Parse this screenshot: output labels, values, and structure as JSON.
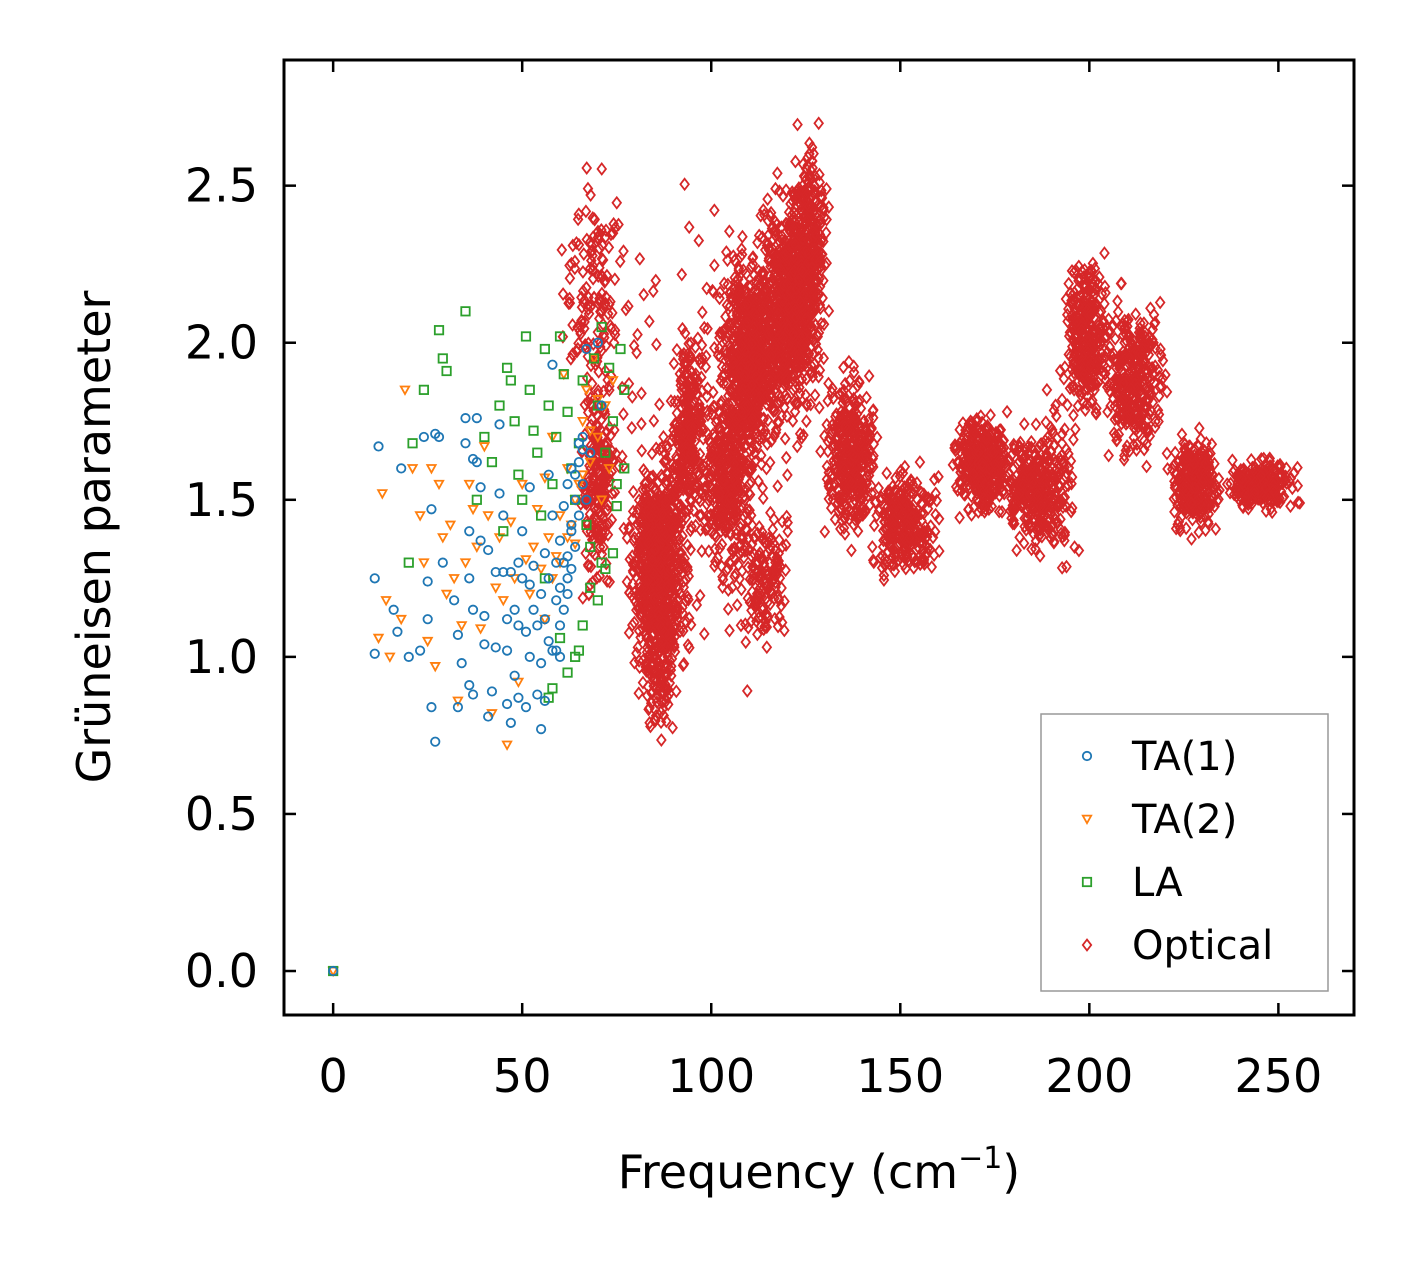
{
  "chart_data": {
    "type": "scatter",
    "title": "",
    "xlabel": "Frequency (cm",
    "xlabel_sup": "−1",
    "xlabel_tail": ")",
    "ylabel": "Grüneisen parameter",
    "xlim": [
      -13,
      270
    ],
    "ylim": [
      -0.14,
      2.9
    ],
    "xticks": [
      0,
      50,
      100,
      150,
      200,
      250
    ],
    "xtick_labels": [
      "0",
      "50",
      "100",
      "150",
      "200",
      "250"
    ],
    "yticks": [
      0.0,
      0.5,
      1.0,
      1.5,
      2.0,
      2.5
    ],
    "ytick_labels": [
      "0.0",
      "0.5",
      "1.0",
      "1.5",
      "2.0",
      "2.5"
    ],
    "grid": false,
    "legend_position": "lower-right",
    "series": [
      {
        "name": "TA(1)",
        "marker": "circle",
        "color": "#1f77b4",
        "points": [
          [
            0,
            0
          ],
          [
            11,
            1.25
          ],
          [
            11,
            1.01
          ],
          [
            12,
            1.67
          ],
          [
            16,
            1.15
          ],
          [
            17,
            1.08
          ],
          [
            18,
            1.6
          ],
          [
            20,
            1.0
          ],
          [
            23,
            1.02
          ],
          [
            24,
            1.7
          ],
          [
            25,
            1.24
          ],
          [
            25,
            1.12
          ],
          [
            26,
            1.47
          ],
          [
            26,
            0.84
          ],
          [
            27,
            1.71
          ],
          [
            27,
            0.73
          ],
          [
            28,
            1.7
          ],
          [
            29,
            1.3
          ],
          [
            32,
            1.18
          ],
          [
            33,
            1.07
          ],
          [
            33,
            0.84
          ],
          [
            34,
            0.98
          ],
          [
            35,
            1.76
          ],
          [
            35,
            1.68
          ],
          [
            36,
            1.4
          ],
          [
            36,
            1.25
          ],
          [
            36,
            0.91
          ],
          [
            37,
            1.63
          ],
          [
            37,
            1.15
          ],
          [
            37,
            0.88
          ],
          [
            38,
            1.76
          ],
          [
            38,
            1.62
          ],
          [
            39,
            1.54
          ],
          [
            39,
            1.37
          ],
          [
            40,
            1.13
          ],
          [
            40,
            1.04
          ],
          [
            41,
            1.34
          ],
          [
            41,
            0.81
          ],
          [
            42,
            0.89
          ],
          [
            43,
            1.27
          ],
          [
            43,
            1.03
          ],
          [
            44,
            1.74
          ],
          [
            44,
            1.52
          ],
          [
            45,
            1.45
          ],
          [
            45,
            1.27
          ],
          [
            46,
            1.12
          ],
          [
            46,
            1.02
          ],
          [
            46,
            0.85
          ],
          [
            47,
            1.27
          ],
          [
            47,
            0.79
          ],
          [
            48,
            1.15
          ],
          [
            48,
            0.94
          ],
          [
            49,
            1.3
          ],
          [
            49,
            1.1
          ],
          [
            49,
            0.87
          ],
          [
            50,
            1.4
          ],
          [
            50,
            1.25
          ],
          [
            51,
            1.08
          ],
          [
            51,
            0.84
          ],
          [
            52,
            1.54
          ],
          [
            52,
            1.23
          ],
          [
            52,
            1.0
          ],
          [
            53,
            1.29
          ],
          [
            53,
            1.15
          ],
          [
            54,
            1.1
          ],
          [
            54,
            0.88
          ],
          [
            55,
            1.2
          ],
          [
            55,
            0.98
          ],
          [
            56,
            1.33
          ],
          [
            56,
            1.12
          ],
          [
            56,
            0.86
          ],
          [
            57,
            1.58
          ],
          [
            57,
            1.25
          ],
          [
            57,
            1.05
          ],
          [
            58,
            1.93
          ],
          [
            58,
            1.45
          ],
          [
            58,
            1.02
          ],
          [
            59,
            1.3
          ],
          [
            59,
            1.18
          ],
          [
            60,
            1.37
          ],
          [
            60,
            1.22
          ],
          [
            60,
            1.1
          ],
          [
            61,
            1.48
          ],
          [
            61,
            1.3
          ],
          [
            62,
            1.55
          ],
          [
            62,
            1.25
          ],
          [
            62,
            1.2
          ],
          [
            63,
            1.6
          ],
          [
            63,
            1.4
          ],
          [
            63,
            1.28
          ],
          [
            64,
            1.5
          ],
          [
            64,
            1.35
          ],
          [
            65,
            1.68
          ],
          [
            65,
            1.45
          ],
          [
            66,
            1.7
          ],
          [
            66,
            1.55
          ],
          [
            67,
            1.98
          ],
          [
            68,
            1.65
          ],
          [
            70,
            2.0
          ],
          [
            71,
            1.8
          ],
          [
            55,
            0.77
          ],
          [
            59,
            1.02
          ],
          [
            60,
            1.0
          ],
          [
            61,
            1.15
          ],
          [
            62,
            1.32
          ],
          [
            63,
            1.42
          ],
          [
            64,
            1.58
          ],
          [
            65,
            1.62
          ],
          [
            66,
            1.66
          ],
          [
            67,
            1.5
          ]
        ]
      },
      {
        "name": "TA(2)",
        "marker": "triangle-down",
        "color": "#ff7f0e",
        "points": [
          [
            0,
            0
          ],
          [
            12,
            1.06
          ],
          [
            13,
            1.52
          ],
          [
            14,
            1.18
          ],
          [
            15,
            1.0
          ],
          [
            18,
            1.12
          ],
          [
            19,
            1.85
          ],
          [
            21,
            1.6
          ],
          [
            23,
            1.45
          ],
          [
            24,
            1.3
          ],
          [
            25,
            1.05
          ],
          [
            26,
            1.6
          ],
          [
            27,
            0.97
          ],
          [
            28,
            1.55
          ],
          [
            29,
            1.38
          ],
          [
            30,
            1.2
          ],
          [
            31,
            1.42
          ],
          [
            32,
            1.25
          ],
          [
            33,
            0.86
          ],
          [
            34,
            1.1
          ],
          [
            35,
            1.3
          ],
          [
            36,
            1.55
          ],
          [
            37,
            1.47
          ],
          [
            38,
            1.35
          ],
          [
            39,
            1.09
          ],
          [
            40,
            1.67
          ],
          [
            41,
            1.45
          ],
          [
            42,
            0.82
          ],
          [
            43,
            1.22
          ],
          [
            44,
            1.38
          ],
          [
            45,
            1.18
          ],
          [
            46,
            0.72
          ],
          [
            47,
            1.43
          ],
          [
            48,
            1.25
          ],
          [
            49,
            0.92
          ],
          [
            50,
            1.55
          ],
          [
            51,
            1.31
          ],
          [
            52,
            1.2
          ],
          [
            53,
            1.35
          ],
          [
            54,
            1.47
          ],
          [
            55,
            1.28
          ],
          [
            56,
            1.57
          ],
          [
            57,
            1.38
          ],
          [
            58,
            1.7
          ],
          [
            59,
            1.32
          ],
          [
            60,
            1.45
          ],
          [
            61,
            1.9
          ],
          [
            62,
            1.6
          ],
          [
            63,
            1.42
          ],
          [
            64,
            1.36
          ],
          [
            65,
            1.55
          ],
          [
            66,
            1.75
          ],
          [
            67,
            1.85
          ],
          [
            68,
            1.62
          ],
          [
            69,
            1.95
          ],
          [
            70,
            1.7
          ],
          [
            71,
            1.5
          ],
          [
            72,
            1.8
          ],
          [
            73,
            1.6
          ],
          [
            74,
            1.88
          ],
          [
            56,
            1.12
          ],
          [
            58,
            1.25
          ],
          [
            60,
            1.3
          ],
          [
            62,
            1.38
          ],
          [
            64,
            1.5
          ],
          [
            66,
            1.58
          ],
          [
            68,
            1.72
          ],
          [
            70,
            1.82
          ]
        ]
      },
      {
        "name": "LA",
        "marker": "square",
        "color": "#2ca02c",
        "points": [
          [
            0,
            0
          ],
          [
            20,
            1.3
          ],
          [
            21,
            1.68
          ],
          [
            24,
            1.85
          ],
          [
            28,
            2.04
          ],
          [
            29,
            1.95
          ],
          [
            30,
            1.91
          ],
          [
            35,
            2.1
          ],
          [
            38,
            1.5
          ],
          [
            40,
            1.7
          ],
          [
            42,
            1.62
          ],
          [
            44,
            1.8
          ],
          [
            45,
            1.4
          ],
          [
            46,
            1.92
          ],
          [
            47,
            1.88
          ],
          [
            48,
            1.75
          ],
          [
            49,
            1.58
          ],
          [
            50,
            1.5
          ],
          [
            51,
            2.02
          ],
          [
            52,
            1.85
          ],
          [
            53,
            1.72
          ],
          [
            54,
            1.65
          ],
          [
            55,
            1.45
          ],
          [
            56,
            1.98
          ],
          [
            57,
            1.8
          ],
          [
            58,
            1.55
          ],
          [
            59,
            1.7
          ],
          [
            60,
            2.02
          ],
          [
            61,
            1.9
          ],
          [
            62,
            1.78
          ],
          [
            63,
            1.6
          ],
          [
            64,
            1.5
          ],
          [
            65,
            1.68
          ],
          [
            66,
            1.88
          ],
          [
            67,
            1.42
          ],
          [
            68,
            1.35
          ],
          [
            69,
            1.95
          ],
          [
            70,
            1.8
          ],
          [
            71,
            2.05
          ],
          [
            72,
            1.65
          ],
          [
            73,
            1.92
          ],
          [
            74,
            1.75
          ],
          [
            75,
            1.55
          ],
          [
            76,
            1.98
          ],
          [
            77,
            1.85
          ],
          [
            56,
            1.25
          ],
          [
            58,
            0.9
          ],
          [
            60,
            1.06
          ],
          [
            62,
            0.95
          ],
          [
            64,
            1.0
          ],
          [
            66,
            1.1
          ],
          [
            68,
            1.22
          ],
          [
            70,
            1.18
          ],
          [
            72,
            1.28
          ],
          [
            74,
            1.33
          ],
          [
            57,
            0.87
          ],
          [
            65,
            1.02
          ],
          [
            71,
            1.3
          ],
          [
            75,
            1.48
          ],
          [
            77,
            1.6
          ]
        ]
      },
      {
        "name": "Optical",
        "marker": "diamond",
        "color": "#d62728",
        "clouds": [
          {
            "x": [
              64,
              76
            ],
            "y": [
              1.1,
              2.0
            ],
            "n": 220
          },
          {
            "x": [
              76,
              96
            ],
            "y": [
              0.85,
              1.75
            ],
            "n": 700
          },
          {
            "x": [
              80,
              92
            ],
            "y": [
              0.7,
              1.2
            ],
            "n": 120
          },
          {
            "x": [
              58,
              80
            ],
            "y": [
              1.7,
              2.65
            ],
            "n": 140
          },
          {
            "x": [
              88,
              100
            ],
            "y": [
              1.3,
              2.1
            ],
            "n": 260
          },
          {
            "x": [
              96,
              112
            ],
            "y": [
              1.2,
              1.9
            ],
            "n": 350
          },
          {
            "x": [
              100,
              120
            ],
            "y": [
              1.5,
              2.4
            ],
            "n": 650
          },
          {
            "x": [
              110,
              132
            ],
            "y": [
              1.6,
              2.6
            ],
            "n": 700
          },
          {
            "x": [
              120,
              132
            ],
            "y": [
              1.9,
              2.75
            ],
            "n": 260
          },
          {
            "x": [
              104,
              124
            ],
            "y": [
              1.0,
              1.5
            ],
            "n": 140
          },
          {
            "x": [
              128,
              146
            ],
            "y": [
              1.3,
              2.0
            ],
            "n": 380
          },
          {
            "x": [
              140,
              162
            ],
            "y": [
              1.2,
              1.65
            ],
            "n": 300
          },
          {
            "x": [
              162,
              182
            ],
            "y": [
              1.4,
              1.82
            ],
            "n": 380
          },
          {
            "x": [
              176,
              194
            ],
            "y": [
              1.28,
              1.78
            ],
            "n": 240
          },
          {
            "x": [
              184,
              198
            ],
            "y": [
              1.2,
              1.95
            ],
            "n": 120
          },
          {
            "x": [
              192,
              206
            ],
            "y": [
              1.7,
              2.35
            ],
            "n": 320
          },
          {
            "x": [
              200,
              224
            ],
            "y": [
              1.55,
              2.2
            ],
            "n": 360
          },
          {
            "x": [
              220,
              236
            ],
            "y": [
              1.35,
              1.75
            ],
            "n": 300
          },
          {
            "x": [
              232,
              258
            ],
            "y": [
              1.45,
              1.65
            ],
            "n": 240
          },
          {
            "x": [
              60,
              140
            ],
            "y": [
              0.72,
              2.7
            ],
            "n": 220
          }
        ]
      }
    ]
  }
}
